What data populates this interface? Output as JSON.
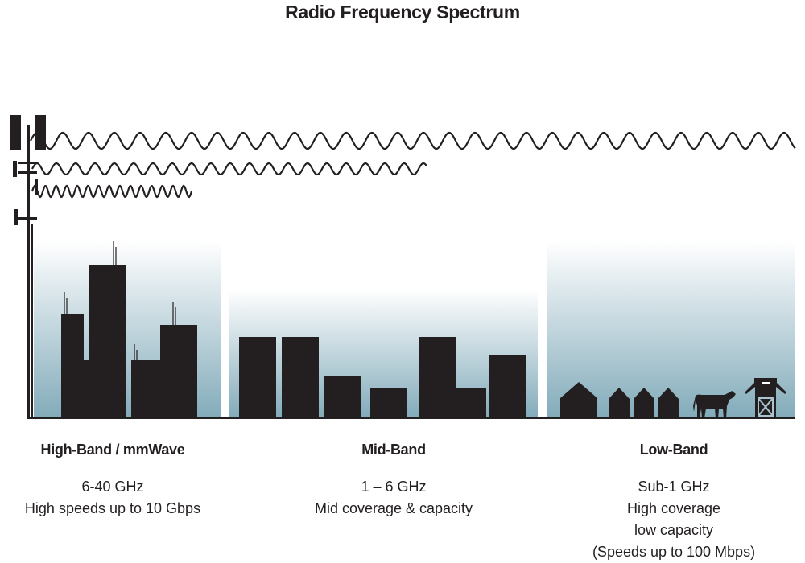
{
  "title": "Radio Frequency Spectrum",
  "colors": {
    "silhouette": "#231f20",
    "sky_bottom": "#7fa9b9",
    "sky_top": "#ffffff"
  },
  "bands": [
    {
      "name": "High-Band / mmWave",
      "lines": [
        "6-40 GHz",
        "High speeds up to 10 Gbps"
      ]
    },
    {
      "name": "Mid-Band",
      "lines": [
        "1 – 6 GHz",
        "Mid coverage & capacity"
      ]
    },
    {
      "name": "Low-Band",
      "lines": [
        "Sub-1 GHz",
        "High coverage",
        "low capacity",
        "(Speeds up to 100 Mbps)"
      ]
    }
  ],
  "icons": [
    "cell-tower-icon",
    "skyscraper-icon",
    "building-icon",
    "house-icon",
    "cow-icon",
    "barn-icon"
  ]
}
